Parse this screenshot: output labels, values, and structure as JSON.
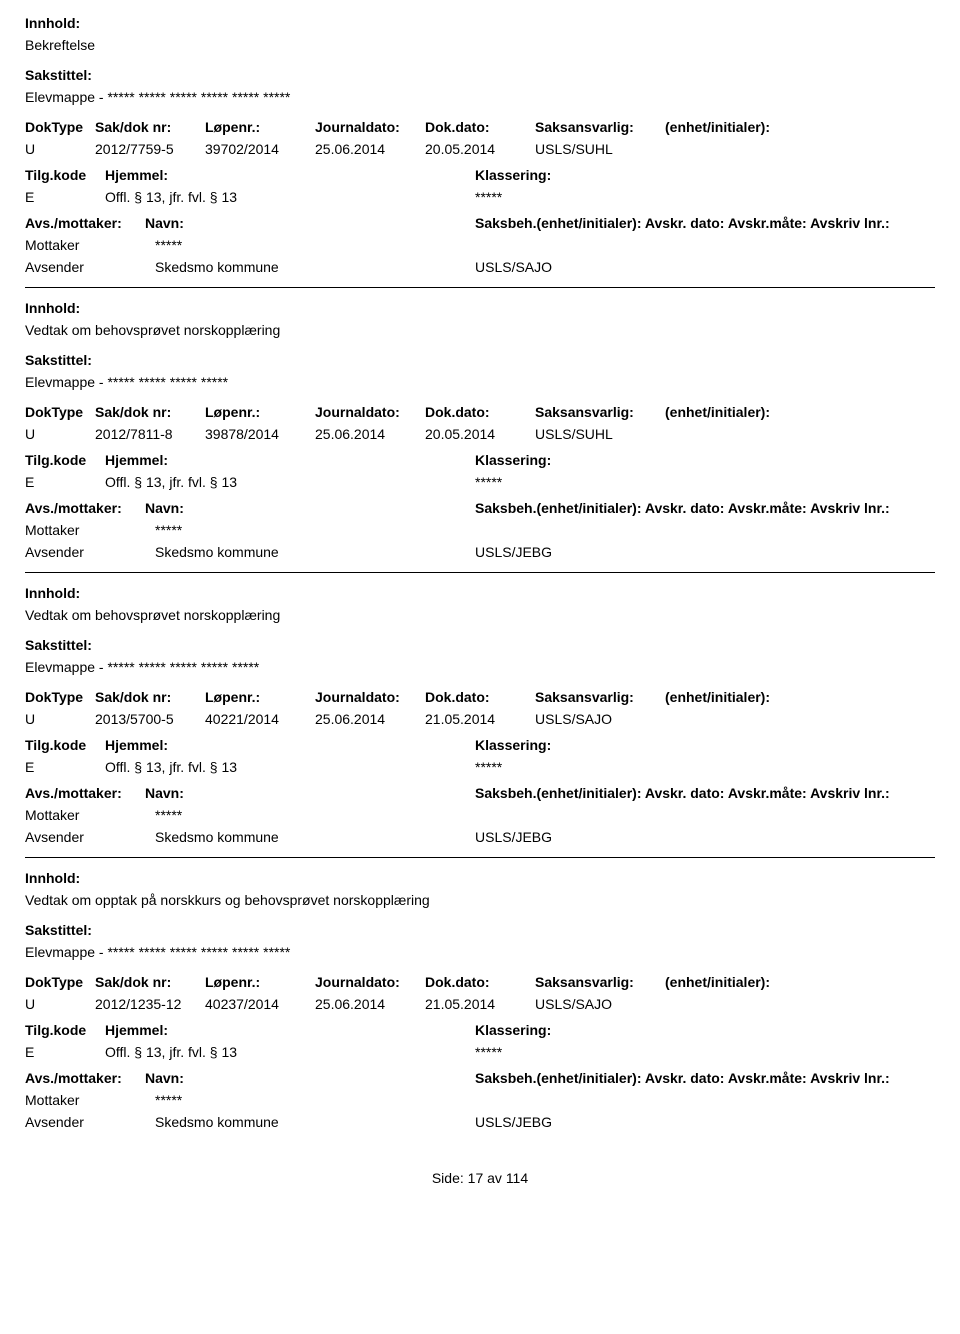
{
  "labels": {
    "innhold": "Innhold:",
    "sakstittel": "Sakstittel:",
    "doktype": "DokType",
    "sakdok": "Sak/dok nr:",
    "lopenr": "Løpenr.:",
    "journaldato": "Journaldato:",
    "dokdato": "Dok.dato:",
    "saksansvarlig": "Saksansvarlig:",
    "enhet": "(enhet/initialer):",
    "tilgkode": "Tilg.kode",
    "hjemmel": "Hjemmel:",
    "klassering": "Klassering:",
    "avsmottaker": "Avs./mottaker:",
    "navn": "Navn:",
    "saksbeh": "Saksbeh.(enhet/initialer): Avskr. dato:  Avskr.måte:  Avskriv lnr.:",
    "mottaker": "Mottaker",
    "avsender": "Avsender",
    "side": "Side:",
    "av": "av"
  },
  "records": [
    {
      "innhold": "Bekreftelse",
      "sakstittel": "Elevmappe - ***** ***** ***** ***** ***** *****",
      "doktype": "U",
      "sakdok": "2012/7759-5",
      "lopenr": "39702/2014",
      "journaldato": "25.06.2014",
      "dokdato": "20.05.2014",
      "saksansvarlig": "USLS/SUHL",
      "enhet": "",
      "tilgkode": "E",
      "hjemmel": "Offl. § 13, jfr. fvl. § 13",
      "klassering": "*****",
      "mottaker_navn": "*****",
      "avsender_navn": "Skedsmo kommune",
      "avsender_code": "USLS/SAJO"
    },
    {
      "innhold": "Vedtak om behovsprøvet norskopplæring",
      "sakstittel": "Elevmappe - ***** ***** ***** *****",
      "doktype": "U",
      "sakdok": "2012/7811-8",
      "lopenr": "39878/2014",
      "journaldato": "25.06.2014",
      "dokdato": "20.05.2014",
      "saksansvarlig": "USLS/SUHL",
      "enhet": "",
      "tilgkode": "E",
      "hjemmel": "Offl. § 13, jfr. fvl. § 13",
      "klassering": "*****",
      "mottaker_navn": "*****",
      "avsender_navn": "Skedsmo kommune",
      "avsender_code": "USLS/JEBG"
    },
    {
      "innhold": "Vedtak om behovsprøvet norskopplæring",
      "sakstittel": "Elevmappe - ***** ***** ***** ***** *****",
      "doktype": "U",
      "sakdok": "2013/5700-5",
      "lopenr": "40221/2014",
      "journaldato": "25.06.2014",
      "dokdato": "21.05.2014",
      "saksansvarlig": "USLS/SAJO",
      "enhet": "",
      "tilgkode": "E",
      "hjemmel": "Offl. § 13, jfr. fvl. § 13",
      "klassering": "*****",
      "mottaker_navn": "*****",
      "avsender_navn": "Skedsmo kommune",
      "avsender_code": "USLS/JEBG"
    },
    {
      "innhold": "Vedtak om opptak på norskkurs og behovsprøvet norskopplæring",
      "sakstittel": "Elevmappe - ***** ***** ***** ***** ***** *****",
      "doktype": "U",
      "sakdok": "2012/1235-12",
      "lopenr": "40237/2014",
      "journaldato": "25.06.2014",
      "dokdato": "21.05.2014",
      "saksansvarlig": "USLS/SAJO",
      "enhet": "",
      "tilgkode": "E",
      "hjemmel": "Offl. § 13, jfr. fvl. § 13",
      "klassering": "*****",
      "mottaker_navn": "*****",
      "avsender_navn": "Skedsmo kommune",
      "avsender_code": "USLS/JEBG"
    }
  ],
  "footer": {
    "page_current": "17",
    "page_total": "114"
  }
}
